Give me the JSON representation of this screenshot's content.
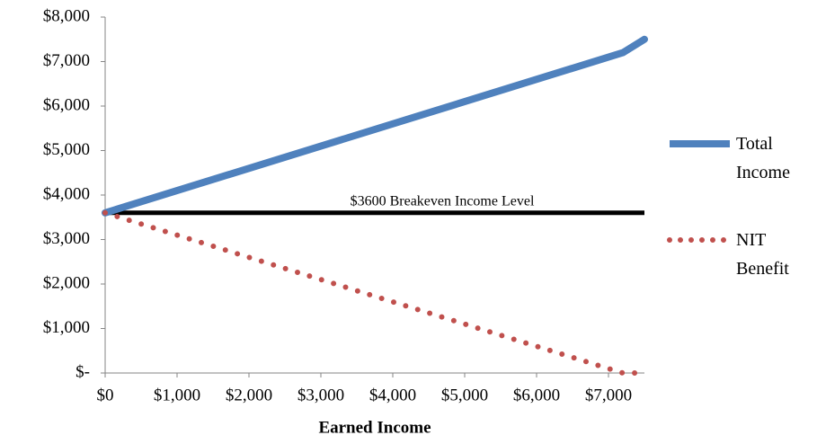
{
  "chart_data": {
    "type": "line",
    "x_label": "Earned Income",
    "x": [
      0,
      7200,
      7500
    ],
    "series": [
      {
        "name": "Total Income",
        "color": "#4f81bd",
        "style": "solid",
        "values": [
          3600,
          7200,
          7500
        ]
      },
      {
        "name": "NIT Benefit",
        "color": "#c0504d",
        "style": "dotted",
        "values": [
          3600,
          0,
          0
        ]
      }
    ],
    "reference_line": {
      "value": 3600,
      "label": "$3600 Breakeven Income Level",
      "color": "#000000"
    },
    "xlim": [
      0,
      7500
    ],
    "xticks": [
      {
        "value": 0,
        "label": "$0"
      },
      {
        "value": 1000,
        "label": "$1,000"
      },
      {
        "value": 2000,
        "label": "$2,000"
      },
      {
        "value": 3000,
        "label": "$3,000"
      },
      {
        "value": 4000,
        "label": "$4,000"
      },
      {
        "value": 5000,
        "label": "$5,000"
      },
      {
        "value": 6000,
        "label": "$6,000"
      },
      {
        "value": 7000,
        "label": "$7,000"
      }
    ],
    "ylim": [
      0,
      8000
    ],
    "yticks": [
      {
        "value": 0,
        "label": "$-"
      },
      {
        "value": 1000,
        "label": "$1,000"
      },
      {
        "value": 2000,
        "label": "$2,000"
      },
      {
        "value": 3000,
        "label": "$3,000"
      },
      {
        "value": 4000,
        "label": "$4,000"
      },
      {
        "value": 5000,
        "label": "$5,000"
      },
      {
        "value": 6000,
        "label": "$6,000"
      },
      {
        "value": 7000,
        "label": "$7,000"
      },
      {
        "value": 8000,
        "label": "$8,000"
      }
    ],
    "grid": false,
    "legend": "right"
  }
}
